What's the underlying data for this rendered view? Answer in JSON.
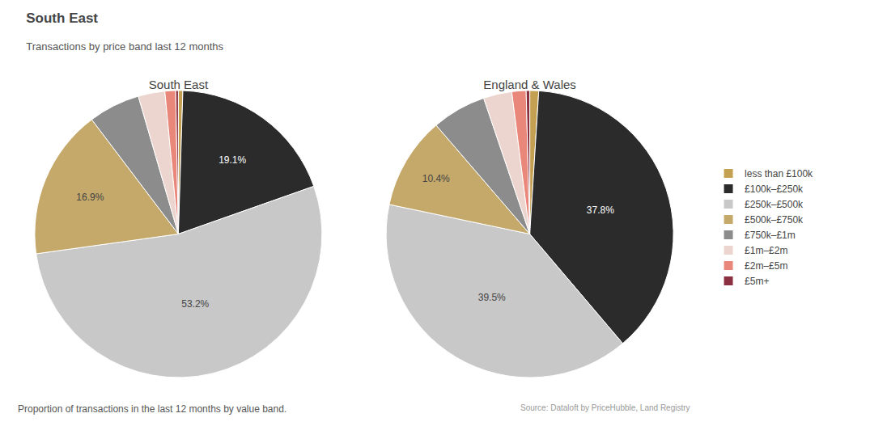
{
  "title": "South East",
  "subtitle": "Transactions by price band last 12 months",
  "annotations": [
    "Source: Dataloft by PriceHubble, Land Registry",
    "Proportion of transactions in the last 12 months by value band."
  ],
  "chart_data": [
    {
      "type": "pie",
      "title": "South East",
      "categories": [
        "less than £100k",
        "£100k–£250k",
        "£250k–£500k",
        "£500k–£750k",
        "£750k–£1m",
        "£1m–£2m",
        "£2m–£5m",
        "£5m+"
      ],
      "values": [
        0.5,
        19.1,
        53.2,
        16.9,
        5.8,
        3.0,
        1.2,
        0.3
      ],
      "value_labels": [
        null,
        "19.1%",
        "53.2%",
        "16.9%",
        null,
        null,
        null,
        null
      ],
      "data_labels": true,
      "colors": [
        "#C4A052",
        "#2B2B2B",
        "#C8C8C8",
        "#C4A96B",
        "#8C8C8C",
        "#EDD5CF",
        "#E8877A",
        "#8B3040"
      ],
      "legend": "right"
    },
    {
      "type": "pie",
      "title": "England & Wales",
      "categories": [
        "less than £100k",
        "£100k–£250k",
        "£250k–£500k",
        "£500k–£750k",
        "£750k–£1m",
        "£1m–£2m",
        "£2m–£5m",
        "£5m+"
      ],
      "values": [
        1.0,
        37.8,
        39.5,
        10.4,
        6.1,
        3.2,
        1.6,
        0.4
      ],
      "value_labels": [
        null,
        "37.8%",
        "39.5%",
        "10.4%",
        null,
        null,
        null,
        null
      ],
      "data_labels": true,
      "colors": [
        "#C4A052",
        "#2B2B2B",
        "#C8C8C8",
        "#C4A96B",
        "#8C8C8C",
        "#EDD5CF",
        "#E8877A",
        "#8B3040"
      ],
      "legend": "right"
    }
  ]
}
